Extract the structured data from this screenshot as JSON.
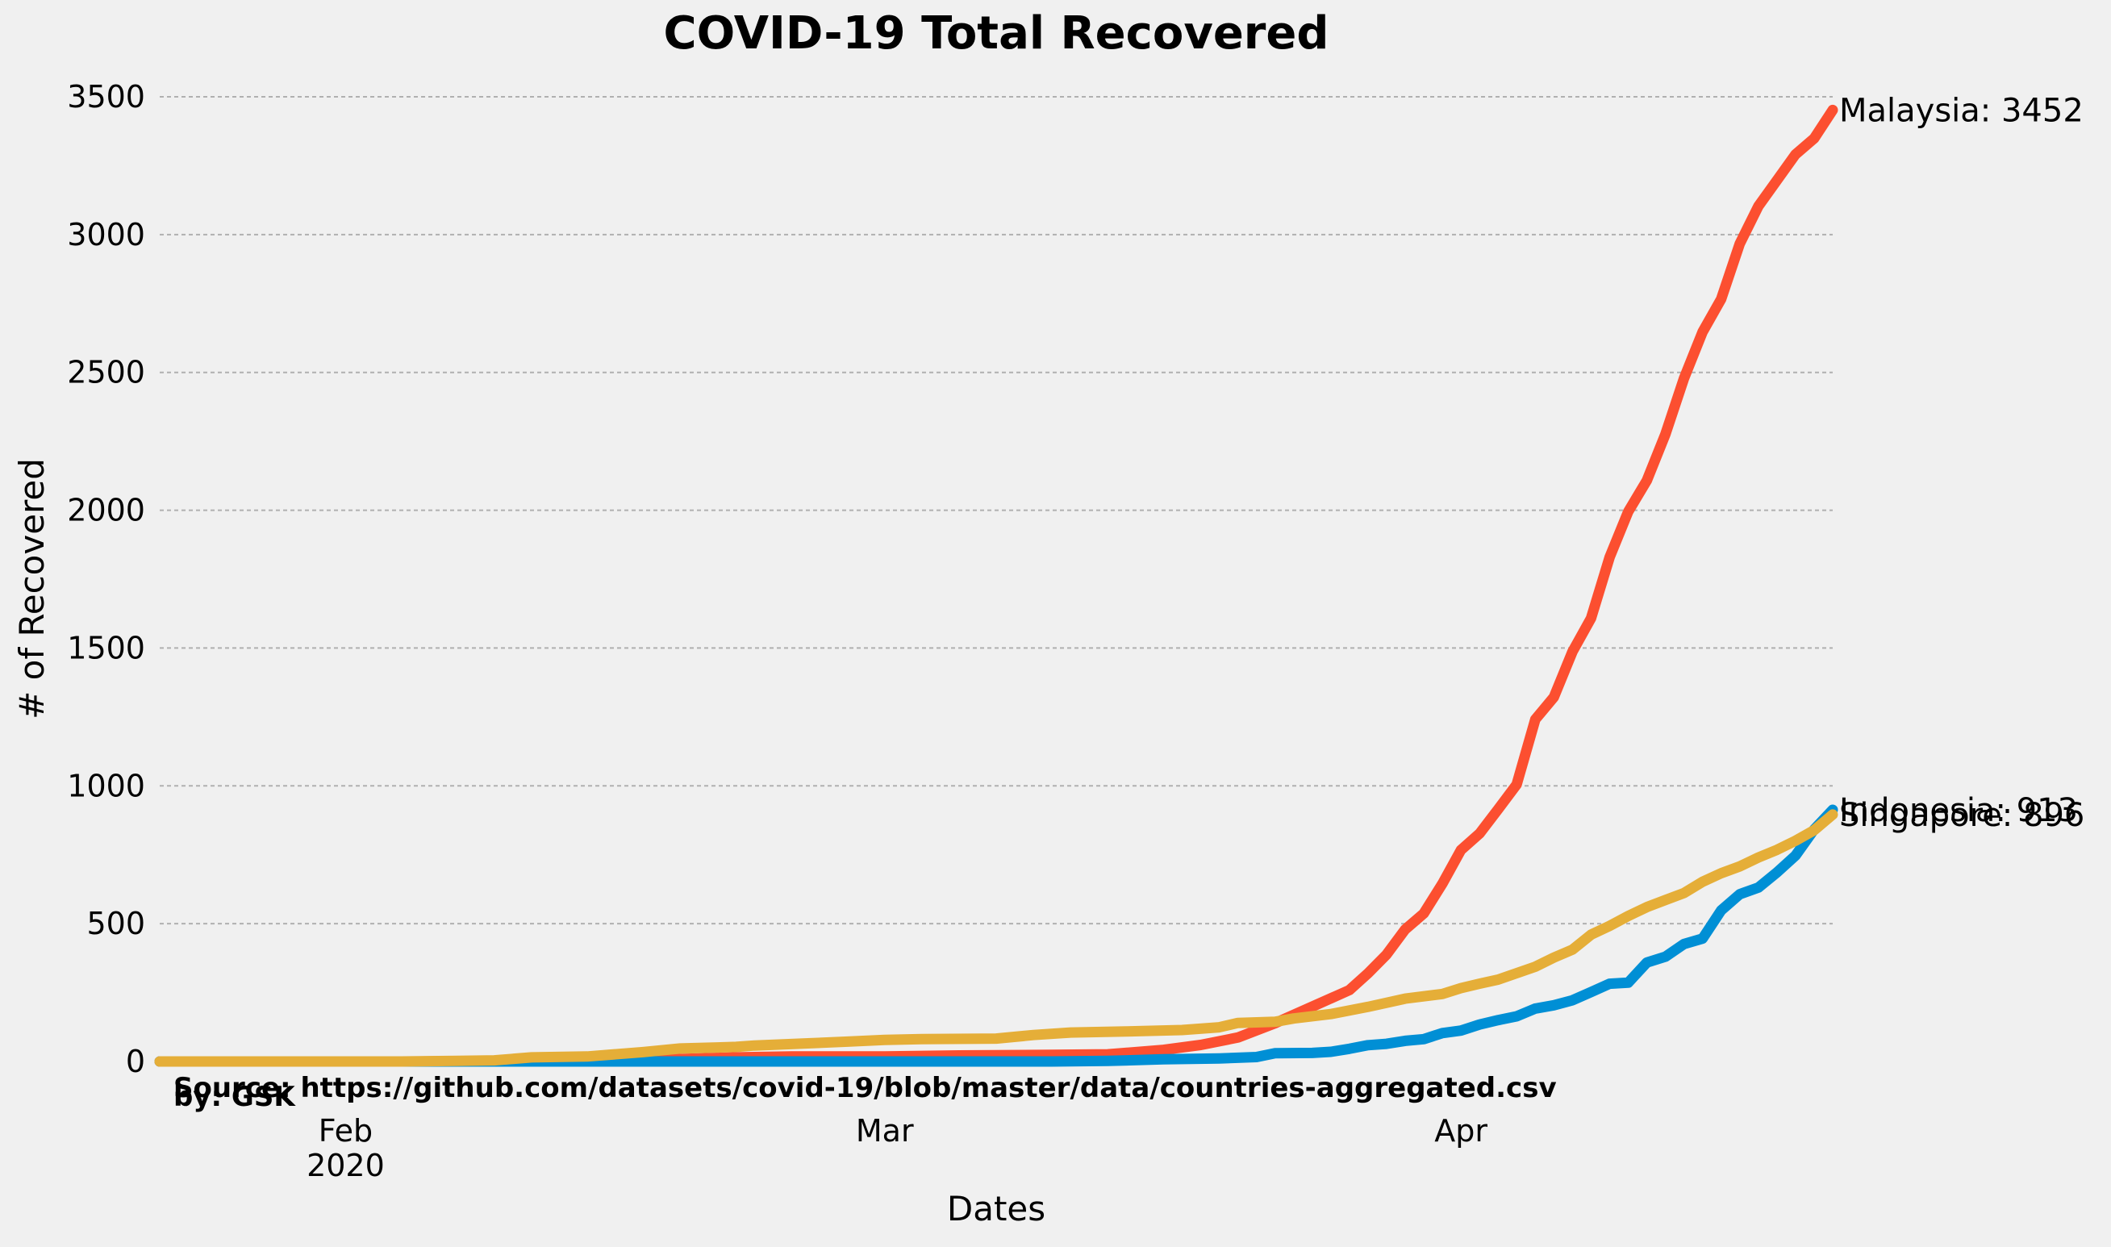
{
  "chart_data": {
    "type": "line",
    "title": "COVID-19 Total Recovered",
    "xlabel": "Dates",
    "ylabel": "# of Recovered",
    "ylim": [
      0,
      3500
    ],
    "yticks": [
      0,
      500,
      1000,
      1500,
      2000,
      2500,
      3000,
      3500
    ],
    "xlim": [
      "2020-01-22",
      "2020-04-18"
    ],
    "xticks": [
      {
        "date": "2020-02-01",
        "label": "Feb",
        "sublabel": "2020"
      },
      {
        "date": "2020-03-01",
        "label": "Mar",
        "sublabel": ""
      },
      {
        "date": "2020-04-01",
        "label": "Apr",
        "sublabel": ""
      }
    ],
    "grid": "horizontal",
    "series": [
      {
        "name": "Malaysia",
        "color": "#fc4f30",
        "end_label": "Malaysia: 3452",
        "points": [
          [
            "2020-01-22",
            0
          ],
          [
            "2020-02-05",
            0
          ],
          [
            "2020-02-10",
            2
          ],
          [
            "2020-02-14",
            3
          ],
          [
            "2020-02-18",
            7
          ],
          [
            "2020-02-22",
            15
          ],
          [
            "2020-02-25",
            18
          ],
          [
            "2020-03-01",
            18
          ],
          [
            "2020-03-05",
            22
          ],
          [
            "2020-03-10",
            24
          ],
          [
            "2020-03-13",
            26
          ],
          [
            "2020-03-16",
            42
          ],
          [
            "2020-03-18",
            60
          ],
          [
            "2020-03-20",
            87
          ],
          [
            "2020-03-22",
            139
          ],
          [
            "2020-03-24",
            199
          ],
          [
            "2020-03-26",
            259
          ],
          [
            "2020-03-27",
            320
          ],
          [
            "2020-03-28",
            388
          ],
          [
            "2020-03-29",
            479
          ],
          [
            "2020-03-30",
            537
          ],
          [
            "2020-03-31",
            645
          ],
          [
            "2020-04-01",
            767
          ],
          [
            "2020-04-02",
            827
          ],
          [
            "2020-04-03",
            915
          ],
          [
            "2020-04-04",
            1005
          ],
          [
            "2020-04-05",
            1241
          ],
          [
            "2020-04-06",
            1322
          ],
          [
            "2020-04-07",
            1487
          ],
          [
            "2020-04-08",
            1608
          ],
          [
            "2020-04-09",
            1830
          ],
          [
            "2020-04-10",
            1995
          ],
          [
            "2020-04-11",
            2108
          ],
          [
            "2020-04-12",
            2276
          ],
          [
            "2020-04-13",
            2478
          ],
          [
            "2020-04-14",
            2647
          ],
          [
            "2020-04-15",
            2766
          ],
          [
            "2020-04-16",
            2967
          ],
          [
            "2020-04-17",
            3103
          ],
          [
            "2020-04-18",
            3197
          ],
          [
            "2020-04-19",
            3291
          ],
          [
            "2020-04-20",
            3349
          ],
          [
            "2020-04-21",
            3452
          ]
        ]
      },
      {
        "name": "Indonesia",
        "color": "#008fd5",
        "end_label": "Indonesia: 913",
        "points": [
          [
            "2020-01-22",
            0
          ],
          [
            "2020-03-10",
            0
          ],
          [
            "2020-03-13",
            2
          ],
          [
            "2020-03-16",
            8
          ],
          [
            "2020-03-19",
            11
          ],
          [
            "2020-03-21",
            16
          ],
          [
            "2020-03-22",
            30
          ],
          [
            "2020-03-24",
            31
          ],
          [
            "2020-03-25",
            35
          ],
          [
            "2020-03-26",
            46
          ],
          [
            "2020-03-27",
            59
          ],
          [
            "2020-03-28",
            64
          ],
          [
            "2020-03-29",
            75
          ],
          [
            "2020-03-30",
            81
          ],
          [
            "2020-03-31",
            103
          ],
          [
            "2020-04-01",
            112
          ],
          [
            "2020-04-02",
            134
          ],
          [
            "2020-04-03",
            150
          ],
          [
            "2020-04-04",
            164
          ],
          [
            "2020-04-05",
            192
          ],
          [
            "2020-04-06",
            204
          ],
          [
            "2020-04-07",
            222
          ],
          [
            "2020-04-08",
            252
          ],
          [
            "2020-04-09",
            282
          ],
          [
            "2020-04-10",
            286
          ],
          [
            "2020-04-11",
            359
          ],
          [
            "2020-04-12",
            380
          ],
          [
            "2020-04-13",
            426
          ],
          [
            "2020-04-14",
            446
          ],
          [
            "2020-04-15",
            548
          ],
          [
            "2020-04-16",
            607
          ],
          [
            "2020-04-17",
            631
          ],
          [
            "2020-04-18",
            686
          ],
          [
            "2020-04-19",
            747
          ],
          [
            "2020-04-20",
            842
          ],
          [
            "2020-04-21",
            913
          ]
        ]
      },
      {
        "name": "Singapore",
        "color": "#e5ae38",
        "end_label": "Singapore: 896",
        "points": [
          [
            "2020-01-22",
            0
          ],
          [
            "2020-02-04",
            0
          ],
          [
            "2020-02-07",
            2
          ],
          [
            "2020-02-09",
            4
          ],
          [
            "2020-02-11",
            15
          ],
          [
            "2020-02-14",
            18
          ],
          [
            "2020-02-17",
            34
          ],
          [
            "2020-02-19",
            47
          ],
          [
            "2020-02-21",
            51
          ],
          [
            "2020-02-22",
            53
          ],
          [
            "2020-02-23",
            58
          ],
          [
            "2020-02-26",
            66
          ],
          [
            "2020-02-28",
            72
          ],
          [
            "2020-03-01",
            78
          ],
          [
            "2020-03-03",
            81
          ],
          [
            "2020-03-07",
            83
          ],
          [
            "2020-03-09",
            96
          ],
          [
            "2020-03-11",
            105
          ],
          [
            "2020-03-14",
            109
          ],
          [
            "2020-03-17",
            114
          ],
          [
            "2020-03-19",
            124
          ],
          [
            "2020-03-20",
            140
          ],
          [
            "2020-03-22",
            144
          ],
          [
            "2020-03-23",
            156
          ],
          [
            "2020-03-25",
            172
          ],
          [
            "2020-03-27",
            198
          ],
          [
            "2020-03-29",
            228
          ],
          [
            "2020-03-31",
            245
          ],
          [
            "2020-04-01",
            266
          ],
          [
            "2020-04-02",
            282
          ],
          [
            "2020-04-03",
            297
          ],
          [
            "2020-04-05",
            344
          ],
          [
            "2020-04-06",
            377
          ],
          [
            "2020-04-07",
            406
          ],
          [
            "2020-04-08",
            460
          ],
          [
            "2020-04-09",
            492
          ],
          [
            "2020-04-10",
            528
          ],
          [
            "2020-04-11",
            560
          ],
          [
            "2020-04-12",
            586
          ],
          [
            "2020-04-13",
            611
          ],
          [
            "2020-04-14",
            652
          ],
          [
            "2020-04-15",
            683
          ],
          [
            "2020-04-16",
            708
          ],
          [
            "2020-04-17",
            740
          ],
          [
            "2020-04-18",
            768
          ],
          [
            "2020-04-19",
            801
          ],
          [
            "2020-04-20",
            839
          ],
          [
            "2020-04-21",
            896
          ]
        ]
      }
    ],
    "annotations": {
      "source": "Source: https://github.com/datasets/covid-19/blob/master/data/countries-aggregated.csv",
      "credit": "by: GSK"
    }
  }
}
